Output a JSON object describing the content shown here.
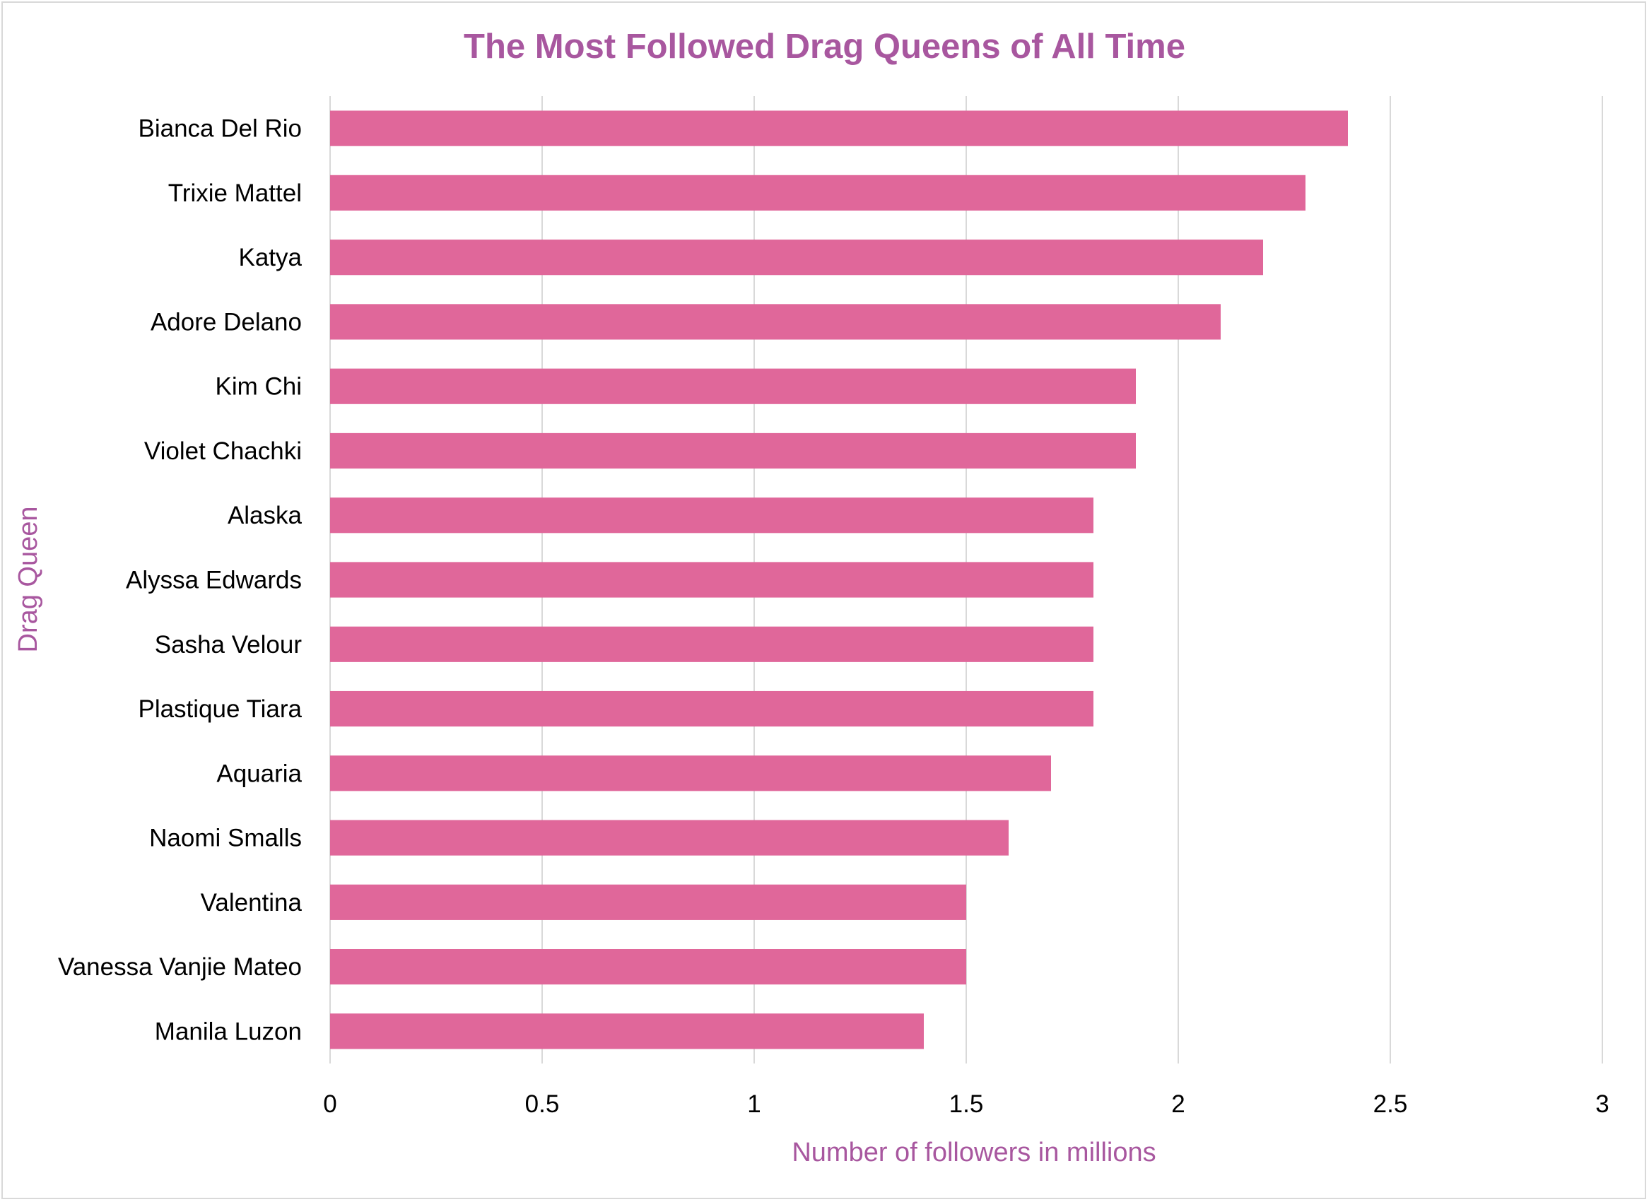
{
  "chart_data": {
    "type": "bar",
    "orientation": "horizontal",
    "title": "The Most Followed Drag Queens of All Time",
    "xlabel": "Number of followers in millions",
    "ylabel": "Drag Queen",
    "categories": [
      "Bianca Del Rio",
      "Trixie Mattel",
      "Katya",
      "Adore Delano",
      "Kim Chi",
      "Violet Chachki",
      "Alaska",
      "Alyssa Edwards",
      "Sasha Velour",
      "Plastique Tiara",
      "Aquaria",
      "Naomi Smalls",
      "Valentina",
      "Vanessa Vanjie Mateo",
      "Manila Luzon"
    ],
    "values": [
      2.4,
      2.3,
      2.2,
      2.1,
      1.9,
      1.9,
      1.8,
      1.8,
      1.8,
      1.8,
      1.7,
      1.6,
      1.5,
      1.5,
      1.4
    ],
    "xlim": [
      0,
      3
    ],
    "xticks": [
      "0",
      "0.5",
      "1",
      "1.5",
      "2",
      "2.5",
      "3"
    ],
    "grid": true,
    "legend": "none",
    "bar_color": "#e0679a",
    "title_color": "#a8579f",
    "grid_color": "#d9d9d9"
  }
}
